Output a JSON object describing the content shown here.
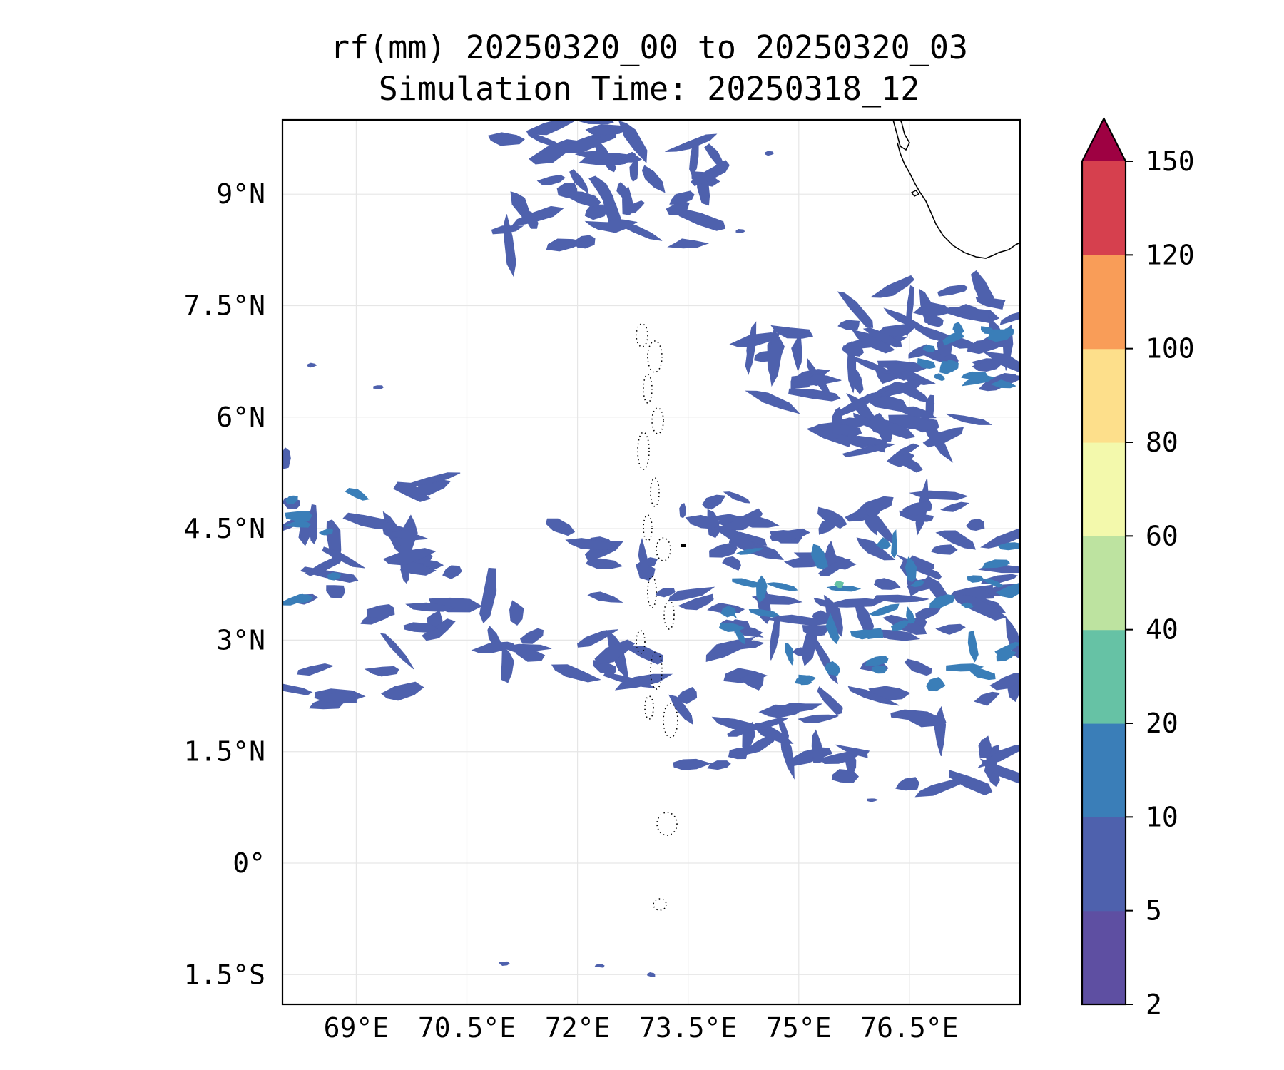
{
  "title": {
    "line1": "rf(mm) 20250320_00 to 20250320_03",
    "line2": "Simulation Time: 20250318_12"
  },
  "map": {
    "lon_range": [
      68.0,
      78.0
    ],
    "lat_range": [
      -1.9,
      10.0
    ],
    "gridlines": true,
    "coastlines": true,
    "lon_ticks": [
      {
        "value": 69.0,
        "label": "69°E"
      },
      {
        "value": 70.5,
        "label": "70.5°E"
      },
      {
        "value": 72.0,
        "label": "72°E"
      },
      {
        "value": 73.5,
        "label": "73.5°E"
      },
      {
        "value": 75.0,
        "label": "75°E"
      },
      {
        "value": 76.5,
        "label": "76.5°E"
      }
    ],
    "lat_ticks": [
      {
        "value": 9.0,
        "label": "9°N"
      },
      {
        "value": 7.5,
        "label": "7.5°N"
      },
      {
        "value": 6.0,
        "label": "6°N"
      },
      {
        "value": 4.5,
        "label": "4.5°N"
      },
      {
        "value": 3.0,
        "label": "3°N"
      },
      {
        "value": 1.5,
        "label": "1.5°N"
      },
      {
        "value": 0.0,
        "label": "0°"
      },
      {
        "value": -1.5,
        "label": "1.5°S"
      }
    ],
    "rain_clusters": [
      {
        "lon": [
          71.0,
          74.0
        ],
        "lat": [
          8.3,
          10.0
        ],
        "count": 46,
        "class": 1
      },
      {
        "lon": [
          75.6,
          78.0
        ],
        "lat": [
          5.6,
          7.8
        ],
        "count": 55,
        "class": 1
      },
      {
        "lon": [
          76.7,
          78.0
        ],
        "lat": [
          6.4,
          7.2
        ],
        "count": 14,
        "class": 2
      },
      {
        "lon": [
          74.2,
          75.3
        ],
        "lat": [
          6.2,
          7.2
        ],
        "count": 14,
        "class": 1
      },
      {
        "lon": [
          75.4,
          76.6
        ],
        "lat": [
          5.0,
          6.0
        ],
        "count": 12,
        "class": 1
      },
      {
        "lon": [
          68.0,
          70.4
        ],
        "lat": [
          2.1,
          5.5
        ],
        "count": 40,
        "class": 1
      },
      {
        "lon": [
          68.0,
          69.3
        ],
        "lat": [
          3.5,
          5.1
        ],
        "count": 8,
        "class": 2
      },
      {
        "lon": [
          70.4,
          73.6
        ],
        "lat": [
          2.4,
          4.8
        ],
        "count": 26,
        "class": 1
      },
      {
        "lon": [
          73.4,
          78.0
        ],
        "lat": [
          1.0,
          5.0
        ],
        "count": 120,
        "class": 1
      },
      {
        "lon": [
          73.8,
          78.0
        ],
        "lat": [
          2.4,
          4.4
        ],
        "count": 40,
        "class": 2
      }
    ],
    "rain_accents": [
      {
        "lon": 75.55,
        "lat": 3.75,
        "class": 3
      }
    ],
    "isolated_specks": [
      {
        "lon": 68.4,
        "lat": 6.7
      },
      {
        "lon": 69.3,
        "lat": 6.4
      },
      {
        "lon": 71.0,
        "lat": -1.35
      },
      {
        "lon": 72.3,
        "lat": -1.38
      },
      {
        "lon": 74.2,
        "lat": 8.5
      },
      {
        "lon": 73.0,
        "lat": -1.5
      },
      {
        "lon": 76.0,
        "lat": 0.85
      },
      {
        "lon": 74.6,
        "lat": 9.55
      }
    ]
  },
  "colorbar": {
    "extend": "max",
    "levels": [
      2,
      5,
      10,
      20,
      40,
      60,
      80,
      100,
      120,
      150
    ],
    "tick_labels": [
      "2",
      "5",
      "10",
      "20",
      "40",
      "60",
      "80",
      "100",
      "120",
      "150"
    ],
    "colors": [
      "#5e4fa2",
      "#4e61ad",
      "#3a7eb8",
      "#66c2a5",
      "#bde3a0",
      "#f3f9ac",
      "#fddf8b",
      "#f99d58",
      "#d6404e"
    ],
    "extend_color": "#9e0142"
  }
}
